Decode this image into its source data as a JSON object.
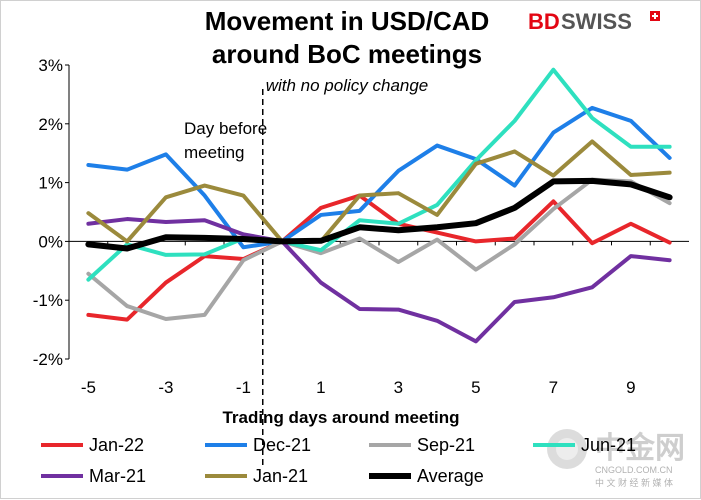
{
  "chart_data": {
    "type": "line",
    "title_lines": [
      "Movement in USD/CAD",
      "around BoC meetings"
    ],
    "subtitle": "with no policy change",
    "xlabel": "Trading days around meeting",
    "ylabel": "",
    "x": [
      -5,
      -4,
      -3,
      -2,
      -1,
      0,
      1,
      2,
      3,
      4,
      5,
      6,
      7,
      8,
      9,
      10
    ],
    "x_tick_labels": [
      "-5",
      "-3",
      "-1",
      "1",
      "3",
      "5",
      "7",
      "9"
    ],
    "x_tick_values": [
      -5,
      -3,
      -1,
      1,
      3,
      5,
      7,
      9
    ],
    "ylim": [
      -2,
      3
    ],
    "y_tick_values": [
      -2,
      -1,
      0,
      1,
      2,
      3
    ],
    "y_tick_labels": [
      "-2%",
      "-1%",
      "0%",
      "1%",
      "2%",
      "3%"
    ],
    "annotation": "Day before\nmeeting",
    "annotation_x": -0.5,
    "legend_placement": "bottom",
    "series": [
      {
        "name": "Jan-22",
        "color": "#e8262b",
        "width": 4,
        "values": [
          -1.25,
          -1.33,
          -0.7,
          -0.25,
          -0.3,
          0.0,
          0.57,
          0.78,
          0.3,
          0.15,
          0.0,
          0.05,
          0.68,
          -0.03,
          0.3,
          -0.02
        ]
      },
      {
        "name": "Dec-21",
        "color": "#1e7fe8",
        "width": 4,
        "values": [
          1.3,
          1.22,
          1.48,
          0.78,
          -0.1,
          0.0,
          0.45,
          0.52,
          1.2,
          1.63,
          1.4,
          0.95,
          1.85,
          2.27,
          2.05,
          1.42
        ]
      },
      {
        "name": "Sep-21",
        "color": "#a6a6a6",
        "width": 4,
        "values": [
          -0.55,
          -1.1,
          -1.32,
          -1.25,
          -0.32,
          0.0,
          -0.2,
          0.05,
          -0.35,
          0.03,
          -0.48,
          -0.05,
          0.55,
          1.05,
          1.02,
          0.65
        ]
      },
      {
        "name": "Jun-21",
        "color": "#2ee0bf",
        "width": 4,
        "values": [
          -0.65,
          -0.05,
          -0.23,
          -0.22,
          0.05,
          0.0,
          -0.15,
          0.36,
          0.3,
          0.62,
          1.38,
          2.05,
          2.92,
          2.1,
          1.61,
          1.61
        ]
      },
      {
        "name": "Mar-21",
        "color": "#7030a0",
        "width": 4,
        "values": [
          0.3,
          0.38,
          0.33,
          0.36,
          0.12,
          0.0,
          -0.7,
          -1.15,
          -1.16,
          -1.35,
          -1.7,
          -1.03,
          -0.95,
          -0.78,
          -0.25,
          -0.32
        ]
      },
      {
        "name": "Jan-21",
        "color": "#9b8a3c",
        "width": 4,
        "values": [
          0.48,
          0.0,
          0.75,
          0.95,
          0.78,
          0.0,
          0.0,
          0.78,
          0.82,
          0.45,
          1.32,
          1.53,
          1.12,
          1.7,
          1.13,
          1.17
        ]
      },
      {
        "name": "Average",
        "color": "#000000",
        "width": 6,
        "values": [
          -0.05,
          -0.12,
          0.07,
          0.06,
          0.04,
          0.0,
          0.01,
          0.24,
          0.19,
          0.24,
          0.31,
          0.57,
          1.02,
          1.03,
          0.97,
          0.75
        ]
      }
    ]
  },
  "branding": {
    "logo_left": "BD",
    "logo_right": "SWISS",
    "logo_color": "#e30613"
  },
  "watermark": {
    "chinese": "中金网",
    "domain": "CNGOLD.COM.CN",
    "tagline": "中 文 财 经 新 媒 体"
  }
}
